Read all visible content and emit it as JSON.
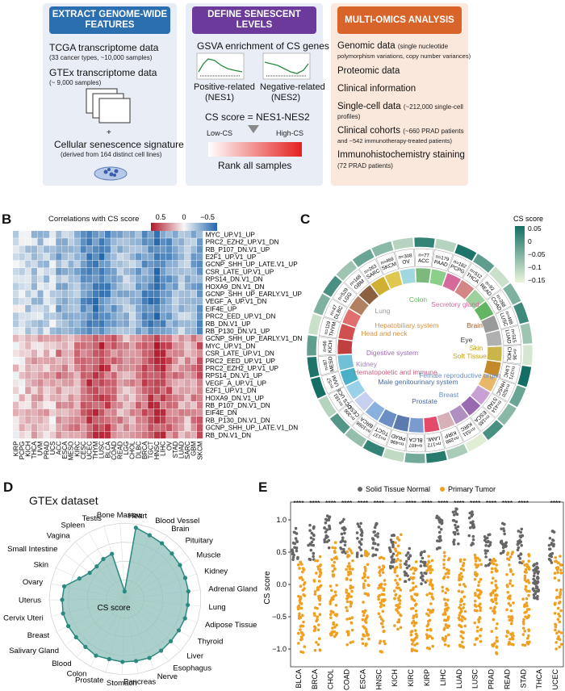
{
  "panelA": {
    "letter": "A",
    "box1": {
      "title": "EXTRACT GENOME-WIDE FEATURES",
      "item1": "TCGA transcriptome data",
      "item1_sub": "(33 cancer types, ~10,000 samples)",
      "item2": "GTEx transcriptome data",
      "item2_sub": "(~ 9,000 samples)",
      "plus": "+",
      "item3": "Cellular senescence signature",
      "item3_sub": "(derived from 164 distinct cell lines)"
    },
    "box2": {
      "title": "DEFINE SENESCENT LEVELS",
      "line1": "GSVA enrichment of CS genes",
      "pos_label": "Positive-related",
      "pos_code": "(NES1)",
      "neg_label": "Negative-related",
      "neg_code": "(NES2)",
      "formula": "CS score = NES1-NES2",
      "low": "Low-CS",
      "high": "High-CS",
      "rank": "Rank all samples"
    },
    "box3": {
      "title": "MULTI-OMICS ANALYSIS",
      "i1": "Genomic data",
      "i1_sub": "(single nucleotide",
      "i1_sub2": "polymorphism variations, copy number variances)",
      "i2": "Proteomic data",
      "i3": "Clinical information",
      "i4": "Single-cell data",
      "i4_sub": "(~212,000 single-cell",
      "i4_sub2": "profiles)",
      "i5": "Clinical cohorts",
      "i5_sub": "(~660 PRAD patients",
      "i5_sub2": "and ~542 immunotherapy-treated patients)",
      "i6": "Immunohistochemistry staining",
      "i6_sub": "(72 PRAD patients)"
    },
    "colors": {
      "blue": "#2c6fb0",
      "purple": "#6b3a9a",
      "orange": "#d8642a"
    }
  },
  "panelB": {
    "letter": "B",
    "legend_title": "Correlations with CS score",
    "legend_ticks": [
      "0.5",
      "0",
      "−0.5"
    ],
    "rows": [
      "MYC_UP.V1_UP",
      "PRC2_EZH2_UP.V1_DN",
      "RB_P107_DN.V1_UP",
      "E2F1_UP.V1_UP",
      "GCNP_SHH_UP_LATE.V1_UP",
      "CSR_LATE_UP.V1_UP",
      "RPS14_DN.V1_DN",
      "HOXA9_DN.V1_DN",
      "GCNP_SHH_UP_EARLY.V1_UP",
      "VEGF_A_UP.V1_DN",
      "EIF4E_UP",
      "PRC2_EED_UP.V1_DN",
      "RB_DN.V1_UP",
      "RB_P130_DN.V1_UP",
      "GCNP_SHH_UP_EARLY.V1_DN",
      "MYC_UP.V1_DN",
      "CSR_LATE_UP.V1_DN",
      "PRC2_EED_UP.V1_UP",
      "PRC2_EZH2_UP.V1_UP",
      "RPS14_DN.V1_UP",
      "VEGF_A_UP.V1_UP",
      "E2F1_UP.V1_DN",
      "HOXA9_DN.V1_UP",
      "RB_P107_DN.V1_DN",
      "EIF4E_DN",
      "RB_P130_DN.V1_DN",
      "GCNP_SHH_UP_LATE.V1_DN",
      "RB_DN.V1_DN"
    ],
    "columns": [
      "KIRP",
      "PCPG",
      "KICH",
      "THCA",
      "UVM",
      "PRAD",
      "UCS",
      "ACC",
      "ESCA",
      "MESO",
      "KIRC",
      "CESC",
      "UCEC",
      "THYM",
      "LUSC",
      "BLCA",
      "COAD",
      "READ",
      "LGG",
      "CHOL",
      "DLBC",
      "BRCA",
      "TGCT",
      "HNSC",
      "LIHC",
      "OV",
      "STAD",
      "LUAD",
      "SARC",
      "GBM",
      "SKCM"
    ]
  },
  "panelC": {
    "letter": "C",
    "legend_title": "CS score",
    "legend_ticks": [
      "0.05",
      "0",
      "−0.05",
      "−0.1",
      "−0.15"
    ],
    "cancers": [
      {
        "n": "n=77",
        "name": "ACC"
      },
      {
        "n": "n=179",
        "name": "PAAD"
      },
      {
        "n": "n=182",
        "name": "PCPG"
      },
      {
        "n": "n=512",
        "name": "THCA"
      },
      {
        "n": "n=92",
        "name": "READ"
      },
      {
        "n": "n=288",
        "name": "COAD"
      },
      {
        "n": "n=498",
        "name": "LUSC"
      },
      {
        "n": "n=515",
        "name": "LUAD"
      },
      {
        "n": "n=36",
        "name": "CHOL"
      },
      {
        "n": "n=371",
        "name": "LIHC"
      },
      {
        "n": "n=520",
        "name": "HNSC"
      },
      {
        "n": "n=414",
        "name": "STAD"
      },
      {
        "n": "n=185",
        "name": "ESCA"
      },
      {
        "n": "n=531",
        "name": "KIRC"
      },
      {
        "n": "n=288",
        "name": "KIRP"
      },
      {
        "n": "n=172",
        "name": "LAML"
      },
      {
        "n": "n=407",
        "name": "BLCA"
      },
      {
        "n": "n=496",
        "name": "PRAD"
      },
      {
        "n": "n=137",
        "name": "TGCT"
      },
      {
        "n": "n=1098",
        "name": "BRCA"
      },
      {
        "n": "n=306",
        "name": "CESC"
      },
      {
        "n": "n=181",
        "name": "UCS UCEC"
      },
      {
        "n": "n=57",
        "name": "UVM"
      },
      {
        "n": "n=87",
        "name": "MESO"
      },
      {
        "n": "n=66",
        "name": "KICH"
      },
      {
        "n": "n=119",
        "name": "THYM"
      },
      {
        "n": "n=47",
        "name": "DLBC"
      },
      {
        "n": "n=529",
        "name": "LGG"
      },
      {
        "n": "n=168",
        "name": "GBM"
      },
      {
        "n": "n=263",
        "name": "SARC"
      },
      {
        "n": "n=469",
        "name": "SKCM"
      },
      {
        "n": "n=308",
        "name": "OV"
      }
    ],
    "systems": [
      "Lung",
      "Colon",
      "Secretory gland",
      "Brain",
      "Eye",
      "Soft Tissue",
      "Skin",
      "Female reproductive organ",
      "Breast",
      "Prostate",
      "Male genitourinary system",
      "Hematopoietic and immune",
      "Kidney",
      "Digestive system",
      "Head and neck",
      "Hepatobiliary system"
    ]
  },
  "panelD": {
    "letter": "D",
    "title": "GTEx dataset",
    "center_label": "CS score",
    "tissues": [
      "Heart",
      "Blood Vessel",
      "Brain",
      "Pituitary",
      "Muscle",
      "Kidney",
      "Adrenal Gland",
      "Lung",
      "Adipose Tissue",
      "Thyroid",
      "Liver",
      "Esophagus",
      "Nerve",
      "Pancreas",
      "Stomach",
      "Prostate",
      "Colon",
      "Blood",
      "Salivary Gland",
      "Breast",
      "Cervix Uteri",
      "Uterus",
      "Ovary",
      "Skin",
      "Small Intestine",
      "Vagina",
      "Spleen",
      "Testis",
      "Bone Marrow"
    ],
    "values": [
      0.95,
      0.9,
      0.88,
      0.86,
      0.85,
      0.84,
      0.84,
      0.83,
      0.83,
      0.82,
      0.82,
      0.83,
      0.84,
      0.83,
      0.83,
      0.82,
      0.84,
      0.82,
      0.82,
      0.83,
      0.84,
      0.83,
      0.82,
      0.66,
      0.58,
      0.57,
      0.6,
      0.62,
      0.1
    ],
    "color": "#2a8a80"
  },
  "panelE": {
    "letter": "E",
    "legend_normal": "Solid Tissue Normal",
    "legend_tumor": "Primary Tumor",
    "ylabel": "CS score",
    "yticks": [
      "1.0",
      "0.5",
      "0.0",
      "−0.5",
      "−1.0"
    ],
    "groups": [
      "BLCA",
      "BRCA",
      "CHOL",
      "COAD",
      "ESCA",
      "HNSC",
      "KICH",
      "KIRC",
      "KIRP",
      "LIHC",
      "LUAD",
      "LUSC",
      "PRAD",
      "READ",
      "STAD",
      "THCA",
      "UCEC"
    ],
    "signif": [
      "****",
      "****",
      "****",
      "****",
      "****",
      "****",
      "*",
      "****",
      "****",
      "****",
      "****",
      "****",
      "****",
      "****",
      "****",
      "",
      "****"
    ],
    "colors": {
      "normal": "#666666",
      "tumor": "#f0a020"
    }
  }
}
